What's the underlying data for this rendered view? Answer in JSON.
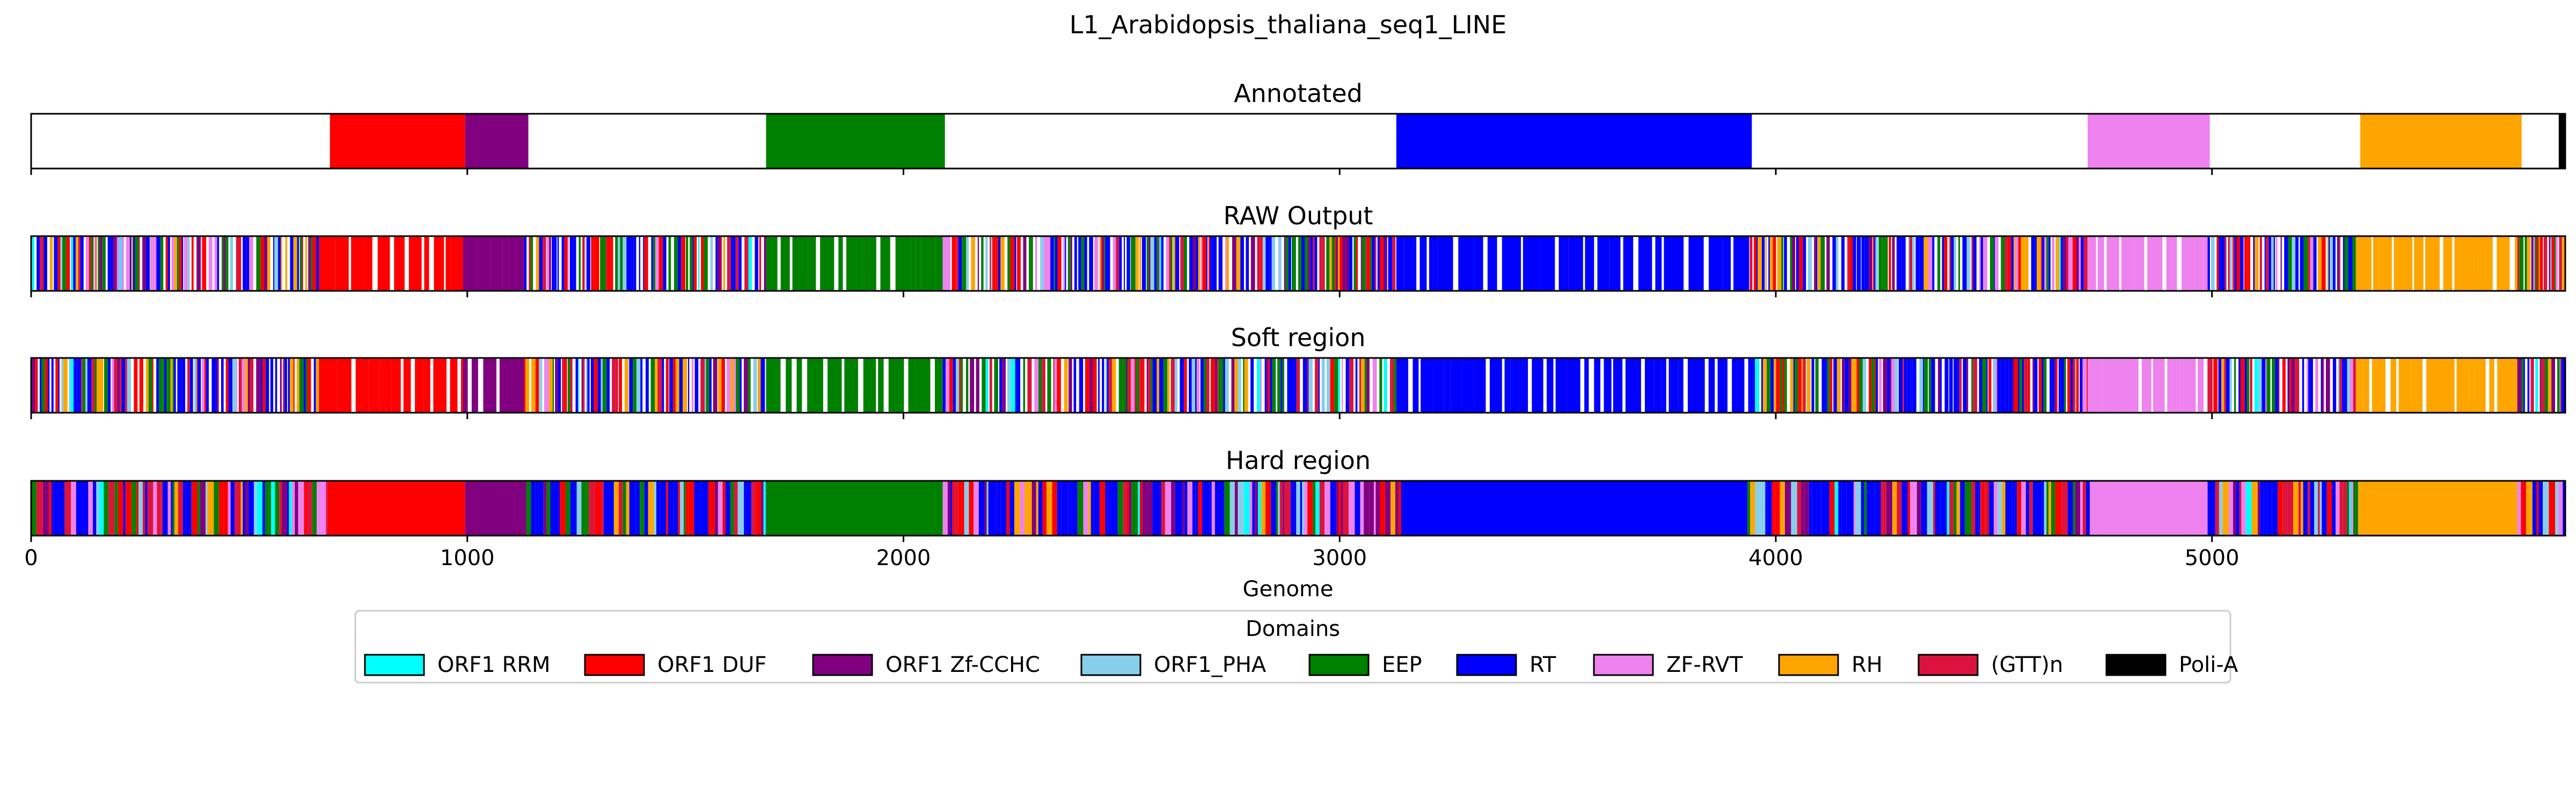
{
  "title": "L1_Arabidopsis_thaliana_seq1_LINE",
  "colors": {
    "ORF1 RRM": "#00ffff",
    "ORF1 DUF": "#ff0000",
    "ORF1 Zf-CCHC": "#800080",
    "ORF1_PHA": "#87ceeb",
    "EEP": "#008000",
    "RT": "#0000ff",
    "ZF-RVT": "#ee82ee",
    "RH": "#ffa500",
    "(GTT)n": "#dc143c",
    "Poli-A": "#000000"
  },
  "chart_data": {
    "type": "track",
    "title": "L1_Arabidopsis_thaliana_seq1_LINE",
    "xlabel": "Genome",
    "xlim": [
      0,
      5810
    ],
    "xticks": [
      0,
      1000,
      2000,
      3000,
      4000,
      5000
    ],
    "xtick_labels": [
      "0",
      "1000",
      "2000",
      "3000",
      "4000",
      "5000"
    ],
    "legend": {
      "title": "Domains",
      "placement": "bottom-center",
      "entries": [
        "ORF1 RRM",
        "ORF1 DUF",
        "ORF1 Zf-CCHC",
        "ORF1_PHA",
        "EEP",
        "RT",
        "ZF-RVT",
        "RH",
        "(GTT)n",
        "Poli-A"
      ]
    },
    "tracks": [
      {
        "title": "Annotated",
        "segments": [
          {
            "domain": "ORF1 DUF",
            "start": 685,
            "end": 995
          },
          {
            "domain": "ORF1 Zf-CCHC",
            "start": 995,
            "end": 1140
          },
          {
            "domain": "EEP",
            "start": 1685,
            "end": 2095
          },
          {
            "domain": "RT",
            "start": 3130,
            "end": 3945
          },
          {
            "domain": "ZF-RVT",
            "start": 4715,
            "end": 4995
          },
          {
            "domain": "RH",
            "start": 5340,
            "end": 5710
          },
          {
            "domain": "Poli-A",
            "start": 5795,
            "end": 5810
          }
        ]
      },
      {
        "title": "RAW Output",
        "segments": [
          {
            "domain": "mixed",
            "start": 0,
            "end": 660
          },
          {
            "domain": "ORF1 DUF",
            "start": 660,
            "end": 990
          },
          {
            "domain": "ORF1 Zf-CCHC",
            "start": 990,
            "end": 1130
          },
          {
            "domain": "mixed",
            "start": 1130,
            "end": 1685
          },
          {
            "domain": "EEP",
            "start": 1685,
            "end": 2090
          },
          {
            "domain": "mixed",
            "start": 2090,
            "end": 3130
          },
          {
            "domain": "RT",
            "start": 3130,
            "end": 3940
          },
          {
            "domain": "mixed",
            "start": 3940,
            "end": 4715
          },
          {
            "domain": "ZF-RVT",
            "start": 4715,
            "end": 4990
          },
          {
            "domain": "mixed",
            "start": 4990,
            "end": 5330
          },
          {
            "domain": "RH",
            "start": 5330,
            "end": 5700
          },
          {
            "domain": "mixed",
            "start": 5700,
            "end": 5810
          }
        ]
      },
      {
        "title": "Soft region",
        "segments": [
          {
            "domain": "mixed",
            "start": 0,
            "end": 660
          },
          {
            "domain": "ORF1 DUF",
            "start": 660,
            "end": 990
          },
          {
            "domain": "ORF1 Zf-CCHC",
            "start": 990,
            "end": 1130
          },
          {
            "domain": "mixed",
            "start": 1130,
            "end": 1685
          },
          {
            "domain": "EEP",
            "start": 1685,
            "end": 2090
          },
          {
            "domain": "mixed",
            "start": 2090,
            "end": 3130
          },
          {
            "domain": "RT",
            "start": 3130,
            "end": 3940
          },
          {
            "domain": "mixed",
            "start": 3940,
            "end": 4715
          },
          {
            "domain": "ZF-RVT",
            "start": 4715,
            "end": 4990
          },
          {
            "domain": "mixed",
            "start": 4990,
            "end": 5330
          },
          {
            "domain": "RH",
            "start": 5330,
            "end": 5700
          },
          {
            "domain": "mixed",
            "start": 5700,
            "end": 5810
          }
        ]
      },
      {
        "title": "Hard region",
        "segments": [
          {
            "domain": "mixed",
            "start": 0,
            "end": 680
          },
          {
            "domain": "ORF1 DUF",
            "start": 680,
            "end": 995
          },
          {
            "domain": "ORF1 Zf-CCHC",
            "start": 995,
            "end": 1135
          },
          {
            "domain": "mixed",
            "start": 1135,
            "end": 1685
          },
          {
            "domain": "EEP",
            "start": 1685,
            "end": 2090
          },
          {
            "domain": "mixed",
            "start": 2090,
            "end": 3145
          },
          {
            "domain": "RT",
            "start": 3145,
            "end": 3935
          },
          {
            "domain": "mixed",
            "start": 3935,
            "end": 4720
          },
          {
            "domain": "ZF-RVT",
            "start": 4720,
            "end": 4990
          },
          {
            "domain": "mixed",
            "start": 4990,
            "end": 5335
          },
          {
            "domain": "RH",
            "start": 5335,
            "end": 5700
          },
          {
            "domain": "mixed",
            "start": 5700,
            "end": 5810
          }
        ]
      }
    ]
  }
}
